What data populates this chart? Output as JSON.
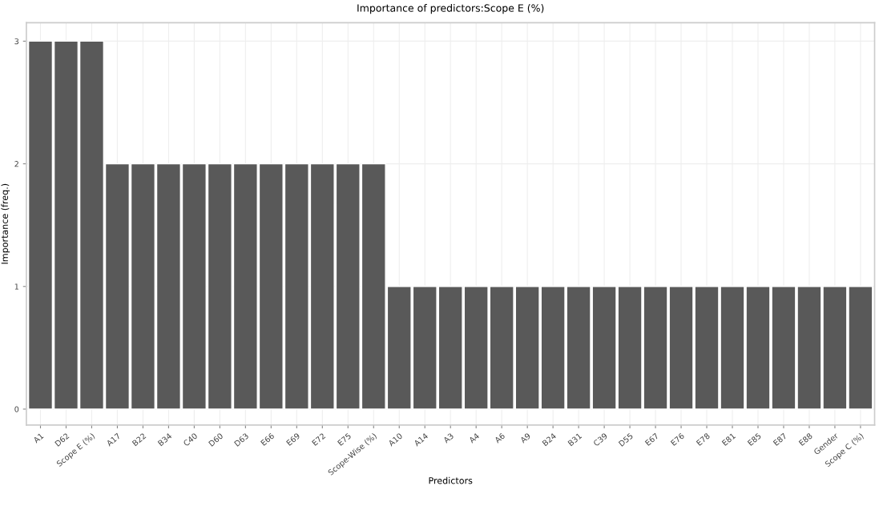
{
  "chart_data": {
    "type": "bar",
    "title": "Importance of predictors:Scope E (%)",
    "xlabel": "Predictors",
    "ylabel": "Importance (freq.)",
    "categories": [
      "A1",
      "D62",
      "Scope E (%)",
      "A17",
      "B22",
      "B34",
      "C40",
      "D60",
      "D63",
      "E66",
      "E69",
      "E72",
      "E75",
      "Scope-Wise (%)",
      "A10",
      "A14",
      "A3",
      "A4",
      "A6",
      "A9",
      "B24",
      "B31",
      "C39",
      "D55",
      "E67",
      "E76",
      "E78",
      "E81",
      "E85",
      "E87",
      "E88",
      "Gender",
      "Scope C (%)"
    ],
    "values": [
      3,
      3,
      3,
      2,
      2,
      2,
      2,
      2,
      2,
      2,
      2,
      2,
      2,
      2,
      1,
      1,
      1,
      1,
      1,
      1,
      1,
      1,
      1,
      1,
      1,
      1,
      1,
      1,
      1,
      1,
      1,
      1,
      1
    ],
    "color": "#595959",
    "ylim": [
      -0.13,
      3.15
    ],
    "yticks": [
      0,
      1,
      2,
      3
    ],
    "grid": true,
    "legend": false
  }
}
